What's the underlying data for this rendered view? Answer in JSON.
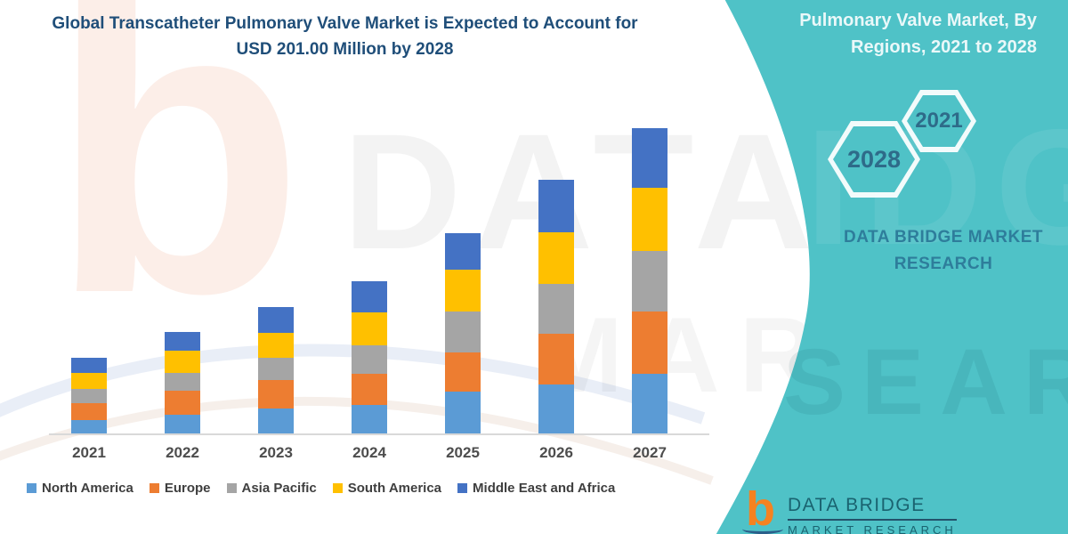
{
  "page": {
    "title": "Global Transcatheter Pulmonary Valve Market is Expected to Account for USD 201.00 Million by 2028"
  },
  "side_panel": {
    "title": "Pulmonary Valve Market, By Regions, 2021 to 2028",
    "hexagon_years": {
      "back": "2028",
      "front": "2021"
    },
    "brand_text": "DATA BRIDGE MARKET RESEARCH",
    "background_color": "#4FC2C7"
  },
  "footer_logo": {
    "logo_letter": "b",
    "line1": "DATA BRIDGE",
    "line2": "MARKET RESEARCH",
    "logo_color": "#F58220"
  },
  "watermarks": {
    "logo_letter": "b",
    "letters_white_zone": "DATA BR",
    "letters_teal_zone": "IDGE",
    "letters_row2_white": "MARKE",
    "letters_row2_teal": "SEARCH"
  },
  "chart_data": {
    "type": "bar",
    "stacked": true,
    "title": "Global Transcatheter Pulmonary Valve Market is Expected to Account for USD 201.00 Million by 2028",
    "categories": [
      "2021",
      "2022",
      "2023",
      "2024",
      "2025",
      "2026",
      "2027"
    ],
    "series": [
      {
        "name": "North America",
        "color": "#5B9BD5",
        "values": [
          16,
          22,
          29,
          33,
          48,
          56,
          68
        ]
      },
      {
        "name": "Europe",
        "color": "#ED7D31",
        "values": [
          19,
          27,
          32,
          35,
          44,
          57,
          70
        ]
      },
      {
        "name": "Asia Pacific",
        "color": "#A5A5A5",
        "values": [
          16,
          20,
          25,
          32,
          46,
          56,
          68
        ]
      },
      {
        "name": "South America",
        "color": "#FFC000",
        "values": [
          18,
          25,
          28,
          37,
          47,
          58,
          71
        ]
      },
      {
        "name": "Middle East and Africa",
        "color": "#4472C4",
        "values": [
          17,
          21,
          29,
          35,
          41,
          59,
          67
        ]
      }
    ],
    "stack_totals": [
      86,
      115,
      143,
      172,
      226,
      286,
      344
    ],
    "value_unit": "relative height (chart displays no y-axis or value labels)",
    "xlabel": "",
    "ylabel": "",
    "ylim": [
      0,
      360
    ],
    "grid": false,
    "y_axis_visible": false,
    "legend_position": "bottom",
    "axis_color": "#D9D9D9"
  }
}
